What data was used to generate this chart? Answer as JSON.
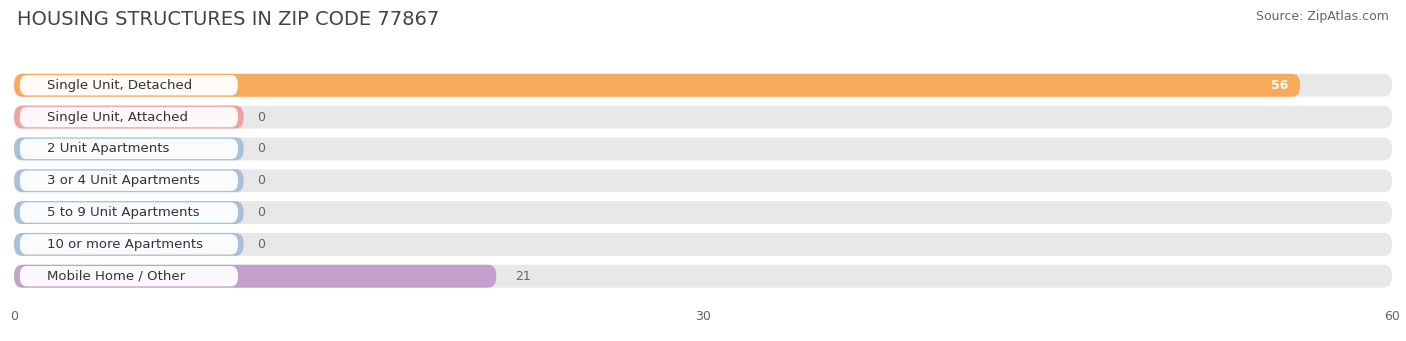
{
  "title": "HOUSING STRUCTURES IN ZIP CODE 77867",
  "source": "Source: ZipAtlas.com",
  "categories": [
    "Single Unit, Detached",
    "Single Unit, Attached",
    "2 Unit Apartments",
    "3 or 4 Unit Apartments",
    "5 to 9 Unit Apartments",
    "10 or more Apartments",
    "Mobile Home / Other"
  ],
  "values": [
    56,
    0,
    0,
    0,
    0,
    0,
    21
  ],
  "bar_colors": [
    "#F7AA5A",
    "#F0A0A0",
    "#A8C0DC",
    "#A8C0DC",
    "#A8C0DC",
    "#A8C0DC",
    "#C4A0CC"
  ],
  "xlim": [
    0,
    60
  ],
  "xticks": [
    0,
    30,
    60
  ],
  "background_color": "#ffffff",
  "row_bg_color": "#e8e8e8",
  "grid_color": "#ffffff",
  "title_fontsize": 14,
  "source_fontsize": 9,
  "label_fontsize": 9.5,
  "value_fontsize": 9
}
